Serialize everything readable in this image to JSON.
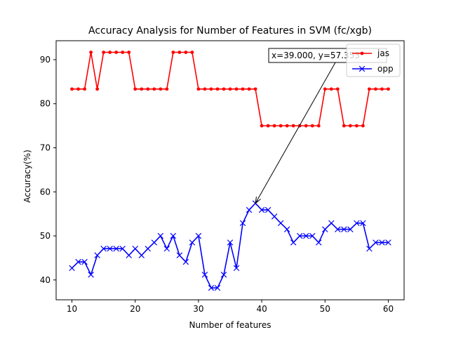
{
  "chart_data": {
    "type": "line",
    "title": "Accuracy Analysis for Number of Features in SVM (fc/xgb)",
    "xlabel": "Number of features",
    "ylabel": "Accuracy(%)",
    "xlim": [
      7.5,
      62.5
    ],
    "ylim": [
      35.5,
      94.3
    ],
    "xticks": [
      10,
      20,
      30,
      40,
      50,
      60
    ],
    "yticks": [
      40,
      50,
      60,
      70,
      80,
      90
    ],
    "grid": false,
    "legend_position": "upper right",
    "x": [
      10,
      11,
      12,
      13,
      14,
      15,
      16,
      17,
      18,
      19,
      20,
      21,
      22,
      23,
      24,
      25,
      26,
      27,
      28,
      29,
      30,
      31,
      32,
      33,
      34,
      35,
      36,
      37,
      38,
      39,
      40,
      41,
      42,
      43,
      44,
      45,
      46,
      47,
      48,
      49,
      50,
      51,
      52,
      53,
      54,
      55,
      56,
      57,
      58,
      59,
      60
    ],
    "series": [
      {
        "name": "jas",
        "color": "#ff0000",
        "marker": "dot",
        "values": [
          83.33,
          83.33,
          83.33,
          91.67,
          83.33,
          91.67,
          91.67,
          91.67,
          91.67,
          91.67,
          83.33,
          83.33,
          83.33,
          83.33,
          83.33,
          83.33,
          91.67,
          91.67,
          91.67,
          91.67,
          83.33,
          83.33,
          83.33,
          83.33,
          83.33,
          83.33,
          83.33,
          83.33,
          83.33,
          83.33,
          75.0,
          75.0,
          75.0,
          75.0,
          75.0,
          75.0,
          75.0,
          75.0,
          75.0,
          75.0,
          83.33,
          83.33,
          83.33,
          75.0,
          75.0,
          75.0,
          75.0,
          83.33,
          83.33,
          83.33,
          83.33
        ]
      },
      {
        "name": "opp",
        "color": "#0000ff",
        "marker": "x",
        "values": [
          42.7,
          44.1,
          44.1,
          41.2,
          45.6,
          47.1,
          47.1,
          47.1,
          47.1,
          45.6,
          47.1,
          45.6,
          47.1,
          48.5,
          50.0,
          47.1,
          50.0,
          45.6,
          44.1,
          48.5,
          50.0,
          41.2,
          38.2,
          38.2,
          41.2,
          48.5,
          42.7,
          52.9,
          55.9,
          57.4,
          55.9,
          55.9,
          54.4,
          52.9,
          51.5,
          48.5,
          50.0,
          50.0,
          50.0,
          48.5,
          51.5,
          52.9,
          51.5,
          51.5,
          51.5,
          52.9,
          52.9,
          47.1,
          48.5,
          48.5,
          48.5
        ]
      }
    ],
    "annotation": {
      "text": "x=39.000, y=57.353",
      "target": [
        39,
        57.4
      ]
    }
  }
}
